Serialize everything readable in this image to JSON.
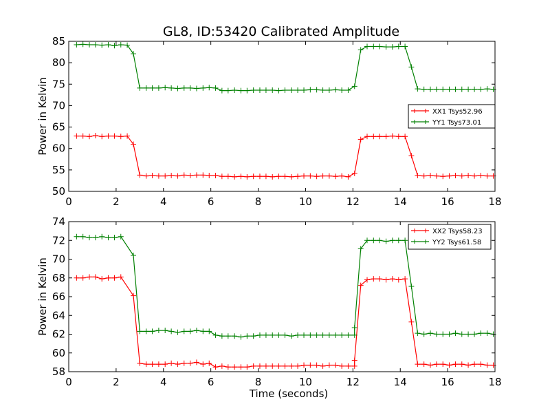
{
  "figure": {
    "title": "GL8, ID:53420 Calibrated Amplitude",
    "shared_xlabel": "Time (seconds)"
  },
  "colors": {
    "background": "#ffffff",
    "xx_series": "#ff0000",
    "yy_series": "#008000",
    "axes": "#000000"
  },
  "chart_data": [
    {
      "type": "line",
      "title": "GL8, ID:53420 Calibrated Amplitude",
      "xlabel": "",
      "ylabel": "Power in Kelvin",
      "xlim": [
        0,
        18
      ],
      "ylim": [
        50,
        85
      ],
      "xticks": [
        0,
        2,
        4,
        6,
        8,
        10,
        12,
        14,
        16,
        18
      ],
      "yticks": [
        50,
        55,
        60,
        65,
        70,
        75,
        80,
        85
      ],
      "grid": false,
      "legend_position": "center-right",
      "marker": "+",
      "x": [
        0.33,
        0.6,
        0.87,
        1.13,
        1.4,
        1.67,
        1.93,
        2.2,
        2.47,
        2.73,
        3.0,
        3.27,
        3.53,
        3.8,
        4.07,
        4.33,
        4.6,
        4.87,
        5.13,
        5.4,
        5.67,
        5.93,
        6.2,
        6.47,
        6.73,
        7.0,
        7.27,
        7.53,
        7.8,
        8.07,
        8.33,
        8.6,
        8.87,
        9.13,
        9.4,
        9.67,
        9.93,
        10.2,
        10.47,
        10.73,
        11.0,
        11.27,
        11.53,
        11.8,
        12.07,
        12.33,
        12.6,
        12.87,
        13.13,
        13.4,
        13.67,
        13.93,
        14.2,
        14.47,
        14.73,
        15.0,
        15.27,
        15.53,
        15.8,
        16.07,
        16.33,
        16.6,
        16.87,
        17.13,
        17.4,
        17.67,
        17.93
      ],
      "series": [
        {
          "name": "XX1 Tsys52.96",
          "color": "#ff0000",
          "values": [
            62.9,
            62.9,
            62.8,
            63.0,
            62.8,
            62.9,
            62.9,
            62.8,
            62.9,
            61.0,
            53.8,
            53.6,
            53.7,
            53.6,
            53.6,
            53.7,
            53.6,
            53.8,
            53.7,
            53.8,
            53.8,
            53.7,
            53.7,
            53.5,
            53.5,
            53.4,
            53.5,
            53.4,
            53.5,
            53.5,
            53.5,
            53.4,
            53.5,
            53.5,
            53.4,
            53.5,
            53.6,
            53.6,
            53.5,
            53.6,
            53.6,
            53.5,
            53.6,
            53.4,
            54.2,
            62.1,
            62.8,
            62.8,
            62.8,
            62.8,
            62.9,
            62.8,
            62.8,
            58.3,
            53.7,
            53.6,
            53.7,
            53.6,
            53.5,
            53.6,
            53.7,
            53.6,
            53.7,
            53.6,
            53.7,
            53.6,
            53.6
          ]
        },
        {
          "name": "YY1 Tsys73.01",
          "color": "#008000",
          "values": [
            84.2,
            84.3,
            84.2,
            84.2,
            84.1,
            84.2,
            84.0,
            84.2,
            84.1,
            82.1,
            74.1,
            74.1,
            74.1,
            74.1,
            74.2,
            74.1,
            74.0,
            74.1,
            74.1,
            74.0,
            74.1,
            74.2,
            74.1,
            73.5,
            73.5,
            73.6,
            73.5,
            73.5,
            73.6,
            73.6,
            73.6,
            73.6,
            73.5,
            73.6,
            73.6,
            73.6,
            73.6,
            73.7,
            73.7,
            73.6,
            73.6,
            73.7,
            73.6,
            73.6,
            74.5,
            83.0,
            83.8,
            83.8,
            83.8,
            83.7,
            83.7,
            83.8,
            83.8,
            79.0,
            73.9,
            73.8,
            73.8,
            73.8,
            73.8,
            73.8,
            73.8,
            73.8,
            73.8,
            73.8,
            73.8,
            73.9,
            73.8
          ]
        }
      ]
    },
    {
      "type": "line",
      "title": "",
      "xlabel": "Time (seconds)",
      "ylabel": "Power in Kelvin",
      "xlim": [
        0,
        18
      ],
      "ylim": [
        58,
        74
      ],
      "xticks": [
        0,
        2,
        4,
        6,
        8,
        10,
        12,
        14,
        16,
        18
      ],
      "yticks": [
        58,
        60,
        62,
        64,
        66,
        68,
        70,
        72,
        74
      ],
      "grid": false,
      "legend_position": "top-right",
      "marker": "+",
      "x": [
        0.33,
        0.6,
        0.87,
        1.13,
        1.4,
        1.67,
        1.93,
        2.2,
        2.47,
        2.73,
        3.0,
        3.27,
        3.53,
        3.8,
        4.07,
        4.33,
        4.6,
        4.87,
        5.13,
        5.4,
        5.67,
        5.93,
        6.2,
        6.47,
        6.73,
        7.0,
        7.27,
        7.53,
        7.8,
        8.07,
        8.33,
        8.6,
        8.87,
        9.13,
        9.4,
        9.67,
        9.93,
        10.2,
        10.47,
        10.73,
        11.0,
        11.27,
        11.53,
        11.8,
        12.07,
        12.33,
        12.6,
        12.87,
        13.13,
        13.4,
        13.67,
        13.93,
        14.2,
        14.47,
        14.73,
        15.0,
        15.27,
        15.53,
        15.8,
        16.07,
        16.33,
        16.6,
        16.87,
        17.13,
        17.4,
        17.67,
        17.93
      ],
      "series": [
        {
          "name": "XX2 Tsys58.23",
          "color": "#ff0000",
          "values": [
            68.0,
            68.0,
            68.1,
            68.1,
            67.9,
            68.0,
            68.0,
            68.1,
            66.1,
            58.9,
            58.8,
            58.8,
            58.8,
            58.8,
            58.9,
            58.8,
            58.9,
            58.9,
            59.0,
            58.8,
            58.9,
            58.5,
            58.6,
            58.5,
            58.5,
            58.5,
            58.5,
            58.6,
            58.6,
            58.6,
            58.6,
            58.6,
            58.6,
            58.6,
            58.6,
            58.7,
            58.7,
            58.7,
            58.6,
            58.7,
            58.7,
            58.6,
            58.6,
            58.6,
            59.2,
            67.2,
            67.8,
            67.9,
            67.9,
            67.8,
            67.9,
            67.8,
            67.9,
            63.3,
            58.8,
            58.8,
            58.7,
            58.8,
            58.8,
            58.7,
            58.8,
            58.8,
            58.7,
            58.8,
            58.8,
            58.7,
            58.7
          ],
          "x": [
            0.33,
            0.6,
            0.87,
            1.13,
            1.4,
            1.67,
            1.93,
            2.2,
            2.73,
            3.0,
            3.27,
            3.53,
            3.8,
            4.07,
            4.33,
            4.6,
            4.87,
            5.13,
            5.4,
            5.67,
            5.93,
            6.2,
            6.47,
            6.73,
            7.0,
            7.27,
            7.53,
            7.8,
            8.07,
            8.33,
            8.6,
            8.87,
            9.13,
            9.4,
            9.67,
            9.93,
            10.2,
            10.47,
            10.73,
            11.0,
            11.27,
            11.53,
            11.8,
            12.07,
            12.07,
            12.33,
            12.6,
            12.87,
            13.13,
            13.4,
            13.67,
            13.93,
            14.2,
            14.47,
            14.73,
            15.0,
            15.27,
            15.53,
            15.8,
            16.07,
            16.33,
            16.6,
            16.87,
            17.13,
            17.4,
            17.67,
            17.93
          ]
        },
        {
          "name": "YY2 Tsys61.58",
          "color": "#008000",
          "values": [
            72.4,
            72.4,
            72.3,
            72.3,
            72.4,
            72.3,
            72.3,
            72.4,
            70.4,
            62.3,
            62.3,
            62.3,
            62.4,
            62.4,
            62.3,
            62.2,
            62.3,
            62.3,
            62.4,
            62.3,
            62.3,
            61.9,
            61.8,
            61.8,
            61.8,
            61.7,
            61.8,
            61.8,
            61.9,
            61.9,
            61.9,
            61.9,
            61.9,
            61.8,
            61.9,
            61.9,
            61.9,
            61.9,
            61.9,
            61.9,
            61.9,
            61.9,
            61.9,
            61.9,
            62.7,
            71.1,
            72.0,
            72.0,
            72.0,
            71.9,
            72.0,
            72.0,
            72.0,
            67.1,
            62.1,
            62.0,
            62.1,
            62.0,
            62.0,
            62.0,
            62.1,
            62.0,
            62.0,
            62.0,
            62.1,
            62.1,
            62.0
          ],
          "x": [
            0.33,
            0.6,
            0.87,
            1.13,
            1.4,
            1.67,
            1.93,
            2.2,
            2.73,
            3.0,
            3.27,
            3.53,
            3.8,
            4.07,
            4.33,
            4.6,
            4.87,
            5.13,
            5.4,
            5.67,
            5.93,
            6.2,
            6.47,
            6.73,
            7.0,
            7.27,
            7.53,
            7.8,
            8.07,
            8.33,
            8.6,
            8.87,
            9.13,
            9.4,
            9.67,
            9.93,
            10.2,
            10.47,
            10.73,
            11.0,
            11.27,
            11.53,
            11.8,
            12.07,
            12.07,
            12.33,
            12.6,
            12.87,
            13.13,
            13.4,
            13.67,
            13.93,
            14.2,
            14.47,
            14.73,
            15.0,
            15.27,
            15.53,
            15.8,
            16.07,
            16.33,
            16.6,
            16.87,
            17.13,
            17.4,
            17.67,
            17.93
          ]
        }
      ]
    }
  ]
}
